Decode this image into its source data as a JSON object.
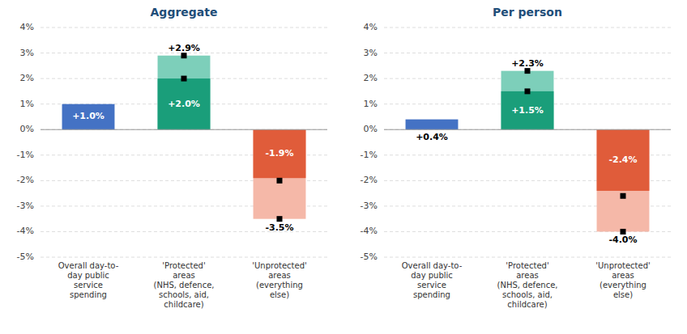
{
  "chart_data": [
    {
      "type": "bar",
      "title": "Aggregate",
      "categories": [
        "Overall day-to-\nday public\nservice\nspending",
        "'Protected'\nareas\n(NHS, defence,\nschools, aid,\nchildcare)",
        "'Unprotected'\nareas\n(everything\nelse)"
      ],
      "series": [
        {
          "type": "bar",
          "colors": [
            "#4472C4",
            "#1A9E7A",
            "#E05C3A"
          ],
          "values": [
            1.0,
            2.0,
            -1.9
          ],
          "value_labels": [
            "+1.0%",
            "+2.0%",
            "-1.9%"
          ]
        },
        {
          "type": "bar",
          "colors": [
            null,
            "#7DCFBA",
            "#F5B8A8"
          ],
          "values": [
            null,
            2.9,
            -3.5
          ],
          "value_labels": [
            null,
            "+2.9%",
            "-3.5%"
          ]
        },
        {
          "type": "scatter",
          "marker": "square",
          "color": "#000000",
          "values": [
            null,
            2.0,
            -2.0
          ]
        },
        {
          "type": "scatter",
          "marker": "square",
          "color": "#000000",
          "values": [
            null,
            2.9,
            -3.5
          ]
        }
      ],
      "data_labels": true,
      "ylim": [
        -5,
        4
      ],
      "yticks": [
        {
          "value": -5,
          "label": "-5%"
        },
        {
          "value": -4,
          "label": "-4%"
        },
        {
          "value": -3,
          "label": "-3%"
        },
        {
          "value": -2,
          "label": "-2%"
        },
        {
          "value": -1,
          "label": "-1%"
        },
        {
          "value": 0,
          "label": "0%"
        },
        {
          "value": 1,
          "label": "1%"
        },
        {
          "value": 2,
          "label": "2%"
        },
        {
          "value": 3,
          "label": "3%"
        },
        {
          "value": 4,
          "label": "4%"
        }
      ],
      "grid": true
    },
    {
      "type": "bar",
      "title": "Per person",
      "categories": [
        "Overall day-to-\nday public\nservice\nspending",
        "'Protected'\nareas\n(NHS, defence,\nschools, aid,\nchildcare)",
        "'Unprotected'\nareas\n(everything\nelse)"
      ],
      "series": [
        {
          "type": "bar",
          "colors": [
            "#4472C4",
            "#1A9E7A",
            "#E05C3A"
          ],
          "values": [
            0.4,
            1.5,
            -2.4
          ],
          "value_labels": [
            "+0.4%",
            "+1.5%",
            "-2.4%"
          ]
        },
        {
          "type": "bar",
          "colors": [
            null,
            "#7DCFBA",
            "#F5B8A8"
          ],
          "values": [
            null,
            2.3,
            -4.0
          ],
          "value_labels": [
            null,
            "+2.3%",
            "-4.0%"
          ]
        },
        {
          "type": "scatter",
          "marker": "square",
          "color": "#000000",
          "values": [
            null,
            1.5,
            -2.6
          ]
        },
        {
          "type": "scatter",
          "marker": "square",
          "color": "#000000",
          "values": [
            null,
            2.3,
            -4.0
          ]
        }
      ],
      "data_labels": true,
      "ylim": [
        -5,
        4
      ],
      "yticks": [
        {
          "value": -5,
          "label": "-5%"
        },
        {
          "value": -4,
          "label": "-4%"
        },
        {
          "value": -3,
          "label": "-3%"
        },
        {
          "value": -2,
          "label": "-2%"
        },
        {
          "value": -1,
          "label": "-1%"
        },
        {
          "value": 0,
          "label": "0%"
        },
        {
          "value": 1,
          "label": "1%"
        },
        {
          "value": 2,
          "label": "2%"
        },
        {
          "value": 3,
          "label": "3%"
        },
        {
          "value": 4,
          "label": "4%"
        }
      ],
      "grid": true
    }
  ]
}
